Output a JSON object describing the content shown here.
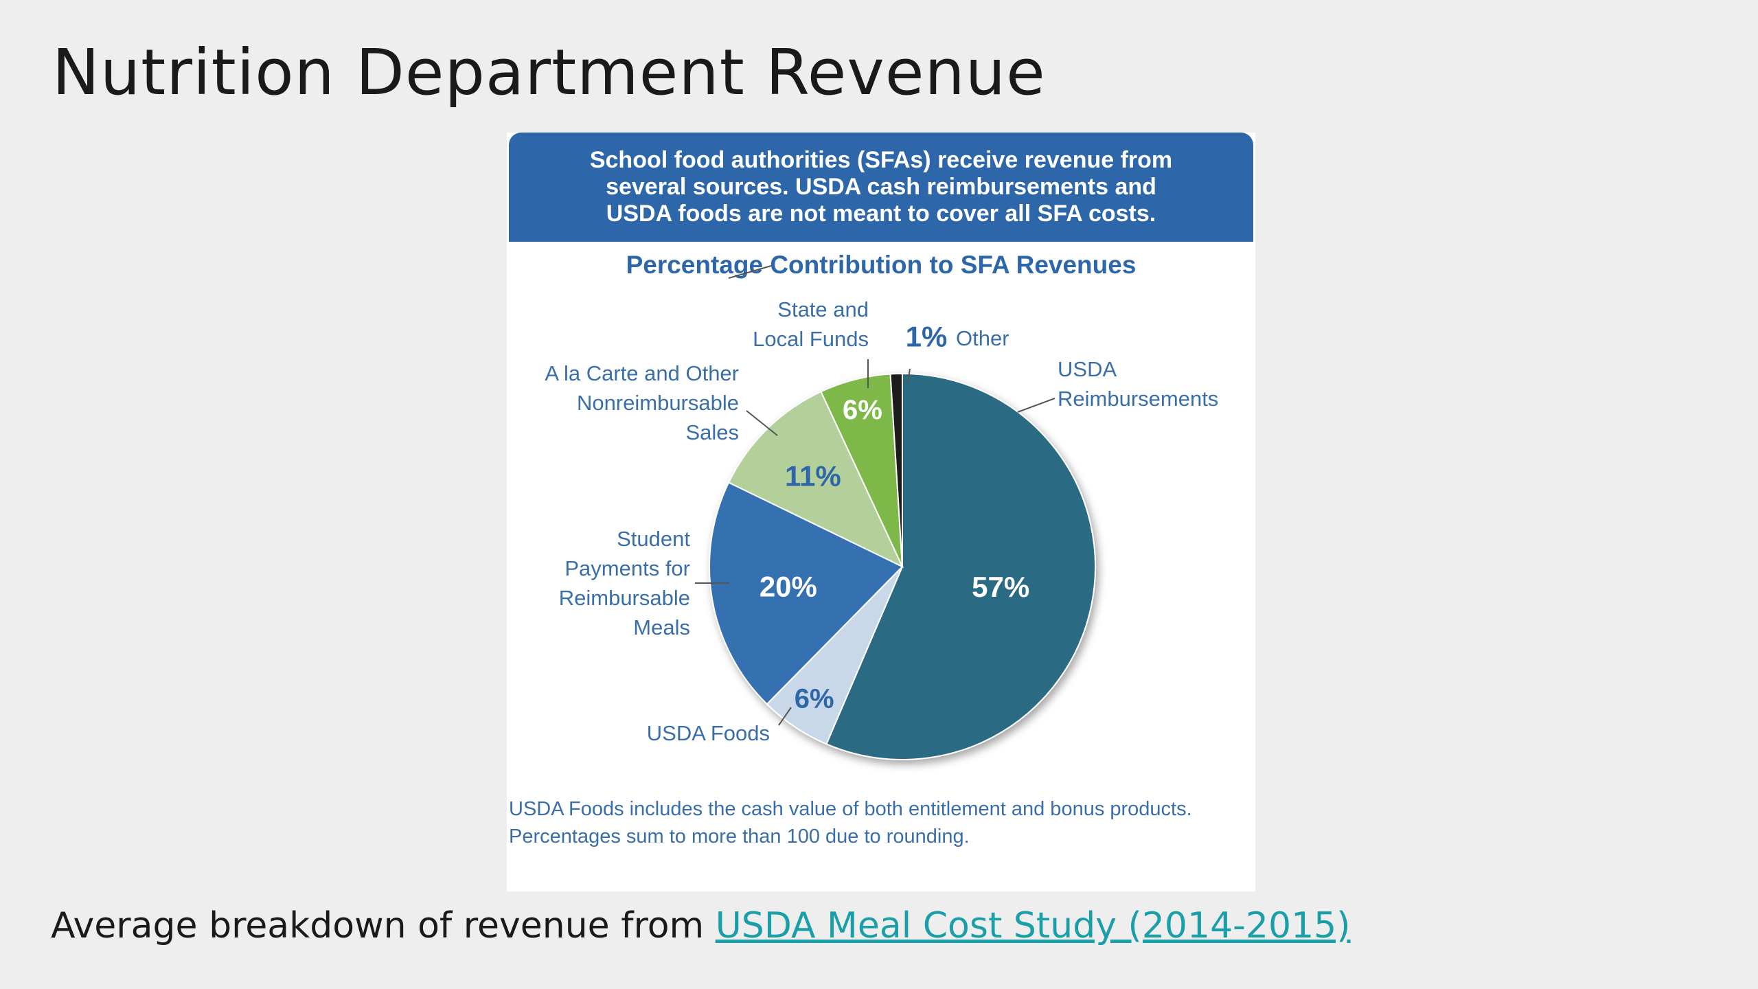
{
  "slide": {
    "title": "Nutrition Department Revenue",
    "caption_prefix": "Average breakdown of revenue from ",
    "caption_link": "USDA Meal Cost Study (2014-2015)"
  },
  "figure": {
    "banner_lines": [
      "School food authorities (SFAs) receive revenue from",
      "several sources. USDA cash reimbursements and",
      "USDA foods are not meant to cover all SFA costs."
    ],
    "footnote_lines": [
      "USDA Foods includes the cash value of both entitlement and bonus products.",
      "Percentages sum to more than 100 due to rounding."
    ]
  },
  "chart_data": {
    "type": "pie",
    "title": "Percentage Contribution to SFA Revenues",
    "slices": [
      {
        "label": "USDA Reimbursements",
        "value": 57,
        "value_label": "57%",
        "color": "#2b6a82"
      },
      {
        "label": "USDA Foods",
        "value": 6,
        "value_label": "6%",
        "color": "#c9d8e8"
      },
      {
        "label": "Student Payments for Reimbursable Meals",
        "value": 20,
        "value_label": "20%",
        "color": "#3470b0"
      },
      {
        "label": "A la Carte and Other Nonreimbursable Sales",
        "value": 11,
        "value_label": "11%",
        "color": "#b3d09b"
      },
      {
        "label": "State and Local Funds",
        "value": 6,
        "value_label": "6%",
        "color": "#7db84a"
      },
      {
        "label": "Other",
        "value": 1,
        "value_label": "1%",
        "color": "#1c1c1c"
      }
    ],
    "colors": {
      "title": "#2e67a9",
      "label_text": "#3a6ea8"
    }
  }
}
